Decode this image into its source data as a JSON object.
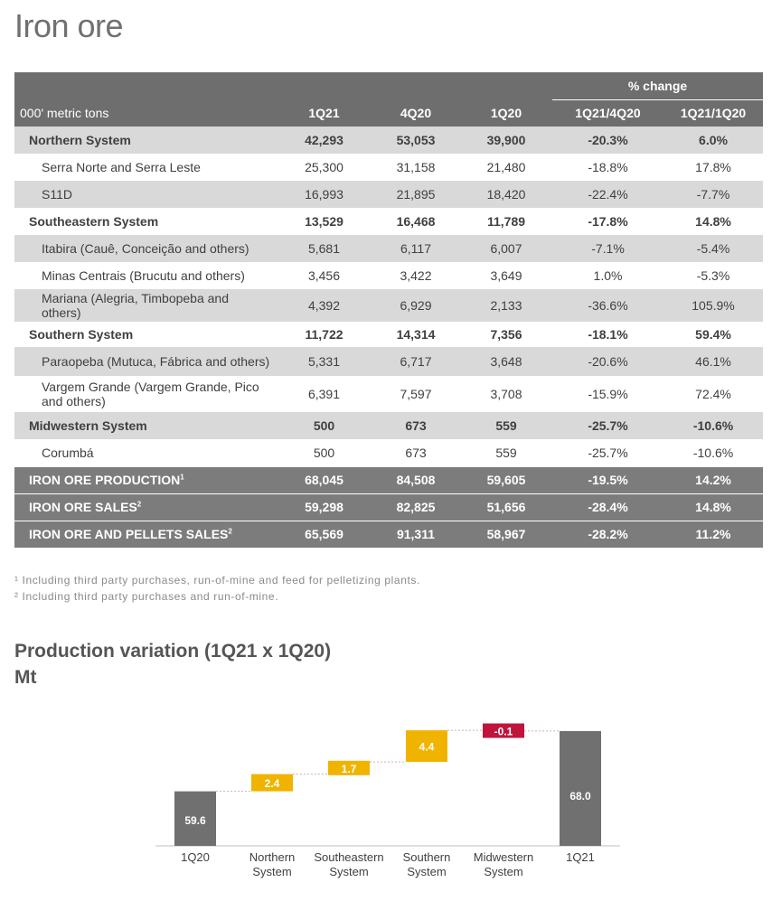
{
  "title": "Iron ore",
  "table": {
    "pct_change_label": "% change",
    "columns": [
      "000' metric tons",
      "1Q21",
      "4Q20",
      "1Q20",
      "1Q21/4Q20",
      "1Q21/1Q20"
    ],
    "rows": [
      {
        "name": "Northern System",
        "v1": "42,293",
        "v2": "53,053",
        "v3": "39,900",
        "c1": "-20.3%",
        "c2": "6.0%"
      },
      {
        "name": "Serra Norte and Serra Leste",
        "v1": "25,300",
        "v2": "31,158",
        "v3": "21,480",
        "c1": "-18.8%",
        "c2": "17.8%"
      },
      {
        "name": "S11D",
        "v1": "16,993",
        "v2": "21,895",
        "v3": "18,420",
        "c1": "-22.4%",
        "c2": "-7.7%"
      },
      {
        "name": "Southeastern System",
        "v1": "13,529",
        "v2": "16,468",
        "v3": "11,789",
        "c1": "-17.8%",
        "c2": "14.8%"
      },
      {
        "name": "Itabira (Cauê, Conceição and others)",
        "v1": "5,681",
        "v2": "6,117",
        "v3": "6,007",
        "c1": "-7.1%",
        "c2": "-5.4%"
      },
      {
        "name": "Minas Centrais (Brucutu and others)",
        "v1": "3,456",
        "v2": "3,422",
        "v3": "3,649",
        "c1": "1.0%",
        "c2": "-5.3%"
      },
      {
        "name": "Mariana (Alegria, Timbopeba and others)",
        "v1": "4,392",
        "v2": "6,929",
        "v3": "2,133",
        "c1": "-36.6%",
        "c2": "105.9%"
      },
      {
        "name": "Southern System",
        "v1": "11,722",
        "v2": "14,314",
        "v3": "7,356",
        "c1": "-18.1%",
        "c2": "59.4%"
      },
      {
        "name": "Paraopeba (Mutuca, Fábrica and others)",
        "v1": "5,331",
        "v2": "6,717",
        "v3": "3,648",
        "c1": "-20.6%",
        "c2": "46.1%"
      },
      {
        "name": "Vargem Grande (Vargem Grande, Pico and others)",
        "v1": "6,391",
        "v2": "7,597",
        "v3": "3,708",
        "c1": "-15.9%",
        "c2": "72.4%"
      },
      {
        "name": "Midwestern System",
        "v1": "500",
        "v2": "673",
        "v3": "559",
        "c1": "-25.7%",
        "c2": "-10.6%"
      },
      {
        "name": "Corumbá",
        "v1": "500",
        "v2": "673",
        "v3": "559",
        "c1": "-25.7%",
        "c2": "-10.6%"
      }
    ],
    "totals": [
      {
        "name": "IRON ORE PRODUCTION",
        "sup": "1",
        "v1": "68,045",
        "v2": "84,508",
        "v3": "59,605",
        "c1": "-19.5%",
        "c2": "14.2%"
      },
      {
        "name": "IRON ORE SALES",
        "sup": "2",
        "v1": "59,298",
        "v2": "82,825",
        "v3": "51,656",
        "c1": "-28.4%",
        "c2": "14.8%"
      },
      {
        "name": "IRON ORE AND PELLETS SALES",
        "sup": "2",
        "v1": "65,569",
        "v2": "91,311",
        "v3": "58,967",
        "c1": "-28.2%",
        "c2": "11.2%"
      }
    ]
  },
  "footnotes": [
    "¹ Including third party purchases, run-of-mine and feed for pelletizing plants.",
    "² Including third party purchases and run-of-mine."
  ],
  "chart_title_line1": "Production variation (1Q21 x 1Q20)",
  "chart_title_line2": "Mt",
  "chart_data": {
    "type": "waterfall",
    "title": "Production variation (1Q21 x 1Q20)",
    "unit": "Mt",
    "categories": [
      "1Q20",
      "Northern System",
      "Southeastern System",
      "Southern System",
      "Midwestern System",
      "1Q21"
    ],
    "values": [
      59.6,
      2.4,
      1.7,
      4.4,
      -0.1,
      68.0
    ],
    "labels": [
      "59.6",
      "2.4",
      "1.7",
      "4.4",
      "-0.1",
      "68.0"
    ],
    "kinds": [
      "total",
      "delta",
      "delta",
      "delta",
      "delta",
      "total"
    ],
    "colors": {
      "total": "#707070",
      "increase": "#f0b400",
      "decrease": "#c0143c"
    },
    "ylim": [
      52,
      69.5
    ]
  }
}
